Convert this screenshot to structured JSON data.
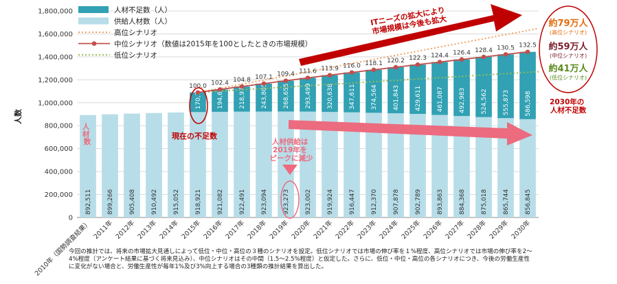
{
  "chart_data": {
    "type": "bar",
    "ylabel": "人数",
    "ylim": [
      0,
      1800000
    ],
    "yticks": [
      "0",
      "200,000",
      "400,000",
      "600,000",
      "800,000",
      "1,000,000",
      "1,200,000",
      "1,400,000",
      "1,600,000",
      "1,800,000"
    ],
    "ytick_values": [
      0,
      200000,
      400000,
      600000,
      800000,
      1000000,
      1200000,
      1400000,
      1600000,
      1800000
    ],
    "categories": [
      "2010年（国勢調査結果）",
      "2011年",
      "2012年",
      "2013年",
      "2014年",
      "2015年",
      "2016年",
      "2017年",
      "2018年",
      "2019年",
      "2020年",
      "2021年",
      "2022年",
      "2023年",
      "2024年",
      "2025年",
      "2026年",
      "2027年",
      "2028年",
      "2029年",
      "2030年"
    ],
    "series": [
      {
        "name": "供給人材数（人）",
        "color": "#b7dde8",
        "values": [
          892511,
          899266,
          905408,
          910492,
          915052,
          918921,
          921082,
          922491,
          923094,
          923273,
          923002,
          919924,
          916447,
          912370,
          907878,
          902789,
          893863,
          884368,
          875018,
          865744,
          856845
        ],
        "labels": [
          "892,511",
          "899,266",
          "905,408",
          "910,492",
          "915,052",
          "918,921",
          "921,082",
          "922,491",
          "923,094",
          "923,273",
          "923,002",
          "919,924",
          "916,447",
          "912,370",
          "907,878",
          "902,789",
          "893,863",
          "884,368",
          "875,018",
          "865,744",
          "856,845"
        ]
      },
      {
        "name": "人材不足数（人）",
        "color": "#31a1b3",
        "values": [
          null,
          null,
          null,
          null,
          null,
          170700,
          194608,
          218976,
          243805,
          268655,
          293499,
          320638,
          347611,
          374564,
          401843,
          429611,
          461087,
          492983,
          524562,
          555873,
          586598
        ],
        "labels": [
          "",
          "",
          "",
          "",
          "",
          "170,700",
          "194,608",
          "218,976",
          "243,805",
          "268,655",
          "293,499",
          "320,638",
          "347,611",
          "374,564",
          "401,843",
          "429,611",
          "461,087",
          "492,983",
          "524,562",
          "555,873",
          "586,598"
        ]
      }
    ],
    "lines": [
      {
        "name": "高位シナリオ",
        "color": "#f0a060",
        "style": "dotted",
        "start_index": 5,
        "end_value": 1648000
      },
      {
        "name": "中位シナリオ（数値は2015年を100としたときの市場規模）",
        "color": "#c0504d",
        "style": "solid-marker",
        "start_index": 5,
        "index_labels": [
          "",
          "",
          "",
          "",
          "",
          "100.0",
          "102.4",
          "104.8",
          "107.1",
          "109.4",
          "111.6",
          "113.9",
          "116.0",
          "118.1",
          "120.2",
          "122.3",
          "124.4",
          "126.4",
          "128.4",
          "130.5",
          "132.5"
        ]
      },
      {
        "name": "低位シナリオ",
        "color": "#9bbb59",
        "style": "dotted",
        "start_index": 5,
        "end_value": 1271000
      }
    ],
    "legend_position": "top-left"
  },
  "annotations": {
    "it_needs": "ITニーズの拡大により\n市場規模は今後も拡大",
    "shortage_now": "現在の不足数",
    "supply_peak": "人材供給は\n2019年を\nピークに減少",
    "supply_vertical": "人材数",
    "high_value": "約79万人",
    "high_sub": "(高位シナリオ)",
    "mid_value": "約59万人",
    "mid_sub": "(中位シナリオ)",
    "low_value": "約41万人",
    "low_sub": "(低位シナリオ)",
    "shortage_2030": "2030年の\n人材不足数"
  },
  "footnote": [
    "今回の推計では、将来の市場拡大見通しによって低位・中位・高位の３種のシナリオを設定。低位シナリオでは市場の伸び率を１%程度、高位シナリオでは市場の伸び率を2～",
    "4%程度（アンケート結果に基づく将来見込み）、中位シナリオはその中間（1.5～2.5%程度）と仮定した。さらに、低位・中位・高位の各シナリオにつき、今後の労働生産性",
    "に変化がない場合と、労働生産性が毎年1%及び3%向上する場合の3種類の推計結果を算出した。"
  ]
}
